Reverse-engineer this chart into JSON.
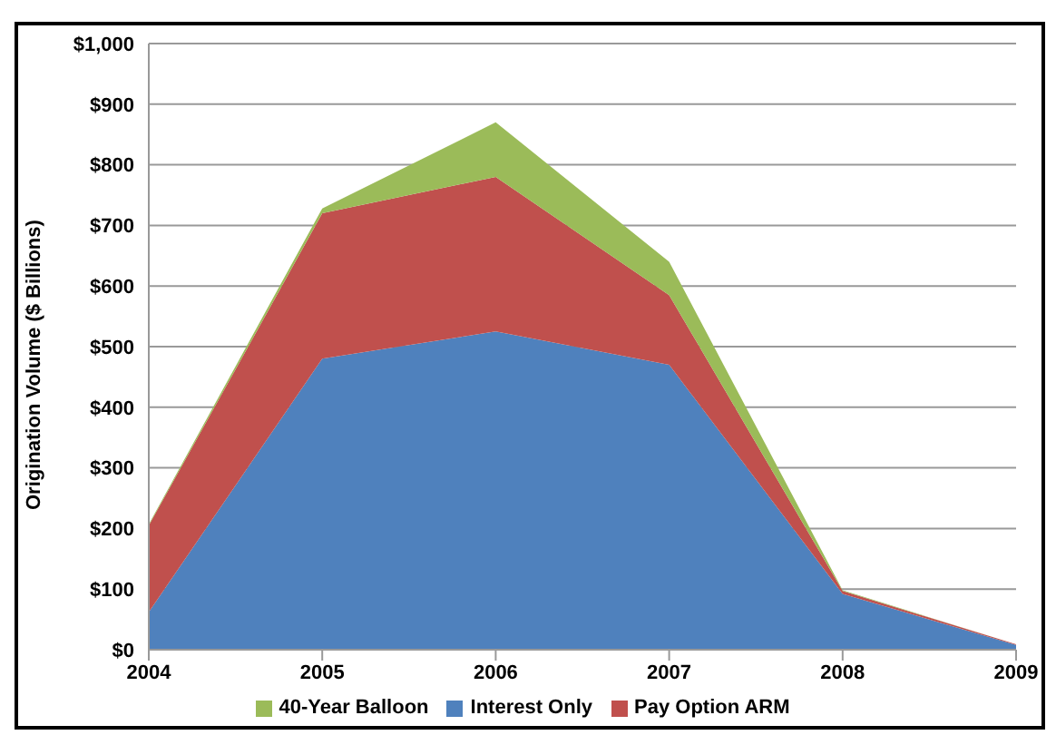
{
  "chart_data": {
    "type": "area",
    "stacked": true,
    "ylabel": "Origination Volume ($ Billions)",
    "categories": [
      "2004",
      "2005",
      "2006",
      "2007",
      "2008",
      "2009"
    ],
    "series": [
      {
        "name": "Interest Only",
        "color": "#4f81bd",
        "values": [
          62,
          480,
          525,
          470,
          92,
          8
        ]
      },
      {
        "name": "Pay Option ARM",
        "color": "#c0504d",
        "values": [
          143,
          240,
          255,
          115,
          5,
          1
        ]
      },
      {
        "name": "40-Year Balloon",
        "color": "#9bbb59",
        "values": [
          2,
          8,
          90,
          55,
          1,
          0
        ]
      }
    ],
    "ylim": [
      0,
      1000
    ],
    "yticks": [
      {
        "value": 0,
        "label": "$0"
      },
      {
        "value": 100,
        "label": "$100"
      },
      {
        "value": 200,
        "label": "$200"
      },
      {
        "value": 300,
        "label": "$300"
      },
      {
        "value": 400,
        "label": "$400"
      },
      {
        "value": 500,
        "label": "$500"
      },
      {
        "value": 600,
        "label": "$600"
      },
      {
        "value": 700,
        "label": "$700"
      },
      {
        "value": 800,
        "label": "$800"
      },
      {
        "value": 900,
        "label": "$900"
      },
      {
        "value": 1000,
        "label": "$1,000"
      }
    ],
    "grid": "y",
    "legend": "bottom"
  }
}
